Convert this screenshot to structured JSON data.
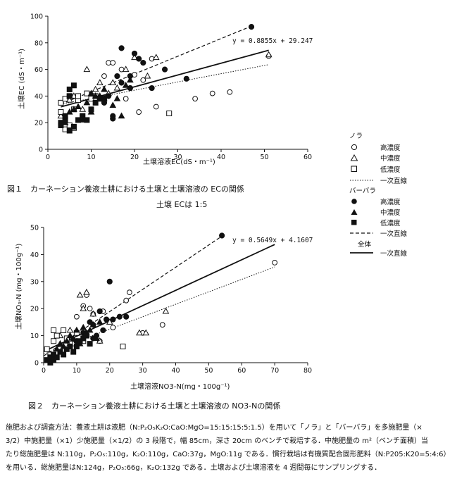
{
  "chart_data": [
    {
      "type": "scatter",
      "id": "fig1",
      "xlabel": "土壌溶液EC(dS・m⁻¹)",
      "ylabel": "土壌EC (dS・m⁻¹)",
      "xlim": [
        0,
        60
      ],
      "ylim": [
        0,
        100
      ],
      "xticks": [
        0,
        10,
        20,
        30,
        40,
        50,
        60
      ],
      "yticks": [
        0,
        20,
        40,
        60,
        80,
        100
      ],
      "equation": "y = 0.8855x + 29.247",
      "caption": "図１　カーネーション養液土耕における土壌と土壌溶液の ECの関係",
      "subcaption": "土壌 ECは 1:5",
      "lines": {
        "all": {
          "slope": 0.8855,
          "intercept": 29.247,
          "x": [
            3,
            51
          ]
        },
        "nora": {
          "slope": 0.62,
          "intercept": 32,
          "x": [
            3,
            51
          ]
        },
        "barbara": {
          "slope": 1.33,
          "intercept": 30,
          "x": [
            3,
            47
          ]
        }
      },
      "series": [
        {
          "name": "ノラ 高濃度",
          "marker": "circle-open",
          "points": [
            [
              14,
              65
            ],
            [
              15,
              65
            ],
            [
              17,
              60
            ],
            [
              20,
              56
            ],
            [
              22,
              52
            ],
            [
              24,
              68
            ],
            [
              19,
              46
            ],
            [
              25,
              32
            ],
            [
              34,
              38
            ],
            [
              38,
              42
            ],
            [
              42,
              43
            ],
            [
              51,
              70
            ],
            [
              18,
              38
            ],
            [
              13,
              55
            ],
            [
              21,
              28
            ],
            [
              11,
              38
            ]
          ]
        },
        {
          "name": "ノラ 中濃度",
          "marker": "triangle-open",
          "points": [
            [
              3,
              25
            ],
            [
              5,
              37
            ],
            [
              9,
              60
            ],
            [
              11,
              45
            ],
            [
              12,
              50
            ],
            [
              13,
              38
            ],
            [
              14,
              42
            ],
            [
              15,
              50
            ],
            [
              16,
              46
            ],
            [
              18,
              60
            ],
            [
              20,
              69
            ],
            [
              23,
              55
            ],
            [
              25,
              69
            ],
            [
              51,
              71
            ],
            [
              6,
              40
            ],
            [
              8,
              30
            ]
          ]
        },
        {
          "name": "ノラ 低濃度",
          "marker": "square-open",
          "points": [
            [
              3,
              28
            ],
            [
              3,
              35
            ],
            [
              4,
              15
            ],
            [
              4,
              38
            ],
            [
              5,
              18
            ],
            [
              5,
              40
            ],
            [
              6,
              16
            ],
            [
              6,
              30
            ],
            [
              7,
              37
            ],
            [
              7,
              40
            ],
            [
              8,
              25
            ],
            [
              9,
              42
            ],
            [
              10,
              38
            ],
            [
              11,
              40
            ],
            [
              12,
              38
            ],
            [
              28,
              27
            ]
          ]
        },
        {
          "name": "バーバラ 高濃度",
          "marker": "circle-filled",
          "points": [
            [
              14,
              40
            ],
            [
              15,
              25
            ],
            [
              16,
              55
            ],
            [
              17,
              50
            ],
            [
              17,
              76
            ],
            [
              19,
              46
            ],
            [
              20,
              72
            ],
            [
              21,
              68
            ],
            [
              22,
              65
            ],
            [
              24,
              46
            ],
            [
              27,
              60
            ],
            [
              32,
              53
            ],
            [
              47,
              92
            ],
            [
              15,
              23
            ],
            [
              19,
              55
            ],
            [
              13,
              35
            ]
          ]
        },
        {
          "name": "バーバラ 中濃度",
          "marker": "triangle-filled",
          "points": [
            [
              4,
              20
            ],
            [
              5,
              28
            ],
            [
              6,
              30
            ],
            [
              7,
              32
            ],
            [
              8,
              22
            ],
            [
              9,
              35
            ],
            [
              10,
              28
            ],
            [
              11,
              40
            ],
            [
              12,
              40
            ],
            [
              13,
              45
            ],
            [
              15,
              33
            ],
            [
              16,
              38
            ],
            [
              17,
              25
            ],
            [
              18,
              48
            ],
            [
              19,
              52
            ],
            [
              10,
              42
            ]
          ]
        },
        {
          "name": "バーバラ 低濃度",
          "marker": "square-filled",
          "points": [
            [
              3,
              18
            ],
            [
              3,
              20
            ],
            [
              4,
              22
            ],
            [
              4,
              25
            ],
            [
              5,
              14
            ],
            [
              5,
              40
            ],
            [
              6,
              17
            ],
            [
              6,
              48
            ],
            [
              7,
              22
            ],
            [
              8,
              25
            ],
            [
              9,
              22
            ],
            [
              10,
              30
            ],
            [
              11,
              35
            ],
            [
              12,
              38
            ],
            [
              13,
              38
            ],
            [
              5,
              45
            ]
          ]
        }
      ]
    },
    {
      "type": "scatter",
      "id": "fig2",
      "xlabel": "土壌溶液NO3-N(mg・100g⁻¹)",
      "ylabel": "土壌NO₃-N (mg・100g⁻¹)",
      "xlim": [
        0,
        80
      ],
      "ylim": [
        0,
        50
      ],
      "xticks": [
        0,
        10,
        20,
        30,
        40,
        50,
        60,
        70,
        80
      ],
      "yticks": [
        0,
        10,
        20,
        30,
        40,
        50
      ],
      "equation": "y = 0.5649x + 4.1607",
      "caption": "図２　カーネーション養液土耕における土壌と土壌溶液の NO3-Nの関係",
      "lines": {
        "all": {
          "slope": 0.5649,
          "intercept": 4.1607,
          "x": [
            0,
            70
          ]
        },
        "nora": {
          "slope": 0.46,
          "intercept": 3.2,
          "x": [
            0,
            70
          ]
        },
        "barbara": {
          "slope": 0.82,
          "intercept": 2.5,
          "x": [
            0,
            54
          ]
        }
      },
      "series": [
        {
          "name": "ノラ 高濃度",
          "marker": "circle-open",
          "points": [
            [
              10,
              17
            ],
            [
              12,
              21
            ],
            [
              13,
              25
            ],
            [
              14,
              20
            ],
            [
              15,
              18
            ],
            [
              18,
              19
            ],
            [
              21,
              13
            ],
            [
              25,
              23
            ],
            [
              26,
              26
            ],
            [
              30,
              11
            ],
            [
              36,
              14
            ],
            [
              70,
              37
            ],
            [
              17,
              8
            ],
            [
              12,
              12
            ]
          ]
        },
        {
          "name": "ノラ 中濃度",
          "marker": "triangle-open",
          "points": [
            [
              5,
              10
            ],
            [
              8,
              12
            ],
            [
              11,
              25
            ],
            [
              12,
              20
            ],
            [
              13,
              26
            ],
            [
              15,
              18
            ],
            [
              17,
              8
            ],
            [
              20,
              15
            ],
            [
              29,
              11
            ],
            [
              31,
              11
            ],
            [
              37,
              19
            ],
            [
              9,
              7
            ]
          ]
        },
        {
          "name": "ノラ 低濃度",
          "marker": "square-open",
          "points": [
            [
              1,
              5
            ],
            [
              2,
              3
            ],
            [
              3,
              12
            ],
            [
              3,
              8
            ],
            [
              4,
              10
            ],
            [
              5,
              5
            ],
            [
              6,
              12
            ],
            [
              7,
              9
            ],
            [
              8,
              7
            ],
            [
              10,
              11
            ],
            [
              12,
              8
            ],
            [
              24,
              6
            ]
          ]
        },
        {
          "name": "バーバラ 高濃度",
          "marker": "circle-filled",
          "points": [
            [
              10,
              8
            ],
            [
              12,
              11
            ],
            [
              14,
              15
            ],
            [
              15,
              14
            ],
            [
              16,
              10
            ],
            [
              17,
              19
            ],
            [
              19,
              16
            ],
            [
              20,
              30
            ],
            [
              21,
              16
            ],
            [
              23,
              17
            ],
            [
              25,
              17
            ],
            [
              54,
              47
            ],
            [
              18,
              12
            ],
            [
              15,
              9
            ]
          ]
        },
        {
          "name": "バーバラ 中濃度",
          "marker": "triangle-filled",
          "points": [
            [
              3,
              3
            ],
            [
              4,
              5
            ],
            [
              5,
              7
            ],
            [
              6,
              6
            ],
            [
              7,
              8
            ],
            [
              8,
              10
            ],
            [
              9,
              9
            ],
            [
              10,
              12
            ],
            [
              11,
              7
            ],
            [
              12,
              13
            ],
            [
              13,
              11
            ],
            [
              14,
              12
            ],
            [
              15,
              14
            ],
            [
              16,
              9
            ],
            [
              17,
              15
            ]
          ]
        },
        {
          "name": "バーバラ 低濃度",
          "marker": "square-filled",
          "points": [
            [
              1,
              1
            ],
            [
              2,
              2
            ],
            [
              2,
              0
            ],
            [
              3,
              1
            ],
            [
              3,
              3
            ],
            [
              4,
              2
            ],
            [
              5,
              4
            ],
            [
              6,
              3
            ],
            [
              7,
              5
            ],
            [
              8,
              6
            ],
            [
              9,
              4
            ],
            [
              10,
              6
            ],
            [
              11,
              8
            ],
            [
              12,
              9
            ],
            [
              13,
              10
            ],
            [
              14,
              7
            ]
          ]
        }
      ]
    }
  ],
  "legend": {
    "nora_title": "ノラ",
    "barbara_title": "バーバラ",
    "all_title": "全体",
    "high": "高濃度",
    "mid": "中濃度",
    "low": "低濃度",
    "fit": "一次直線"
  },
  "footnote": {
    "line1": "施肥および調査方法：養液土耕は液肥（N:P₂O₅K₂O:CaO:MgO=15:15:15:5:1.5）を用いて「ノラ」と「バーバラ」を多施肥量（×",
    "line2": "3/2）中施肥量（×1）少施肥量（×1/2）の 3 段階で，幅 85cm，深さ 20cm のベンチで栽培する．中施肥量の m²（ベンチ面積）当",
    "line3": "たり総施肥量は N:110g，P₂O₅:110g，K₂O:110g，CaO:37g，MgO:11g である．慣行栽培は有機質配合固形肥料（N:P205:K20=5:4:6）",
    "line4": "を用いる．総施肥量はN:124g，P₂O₅:66g，K₂O:132g である．土壌および土壌溶液を 4 週間毎にサンプリングする．"
  },
  "colors": {
    "ink": "#111111",
    "background": "#ffffff"
  }
}
